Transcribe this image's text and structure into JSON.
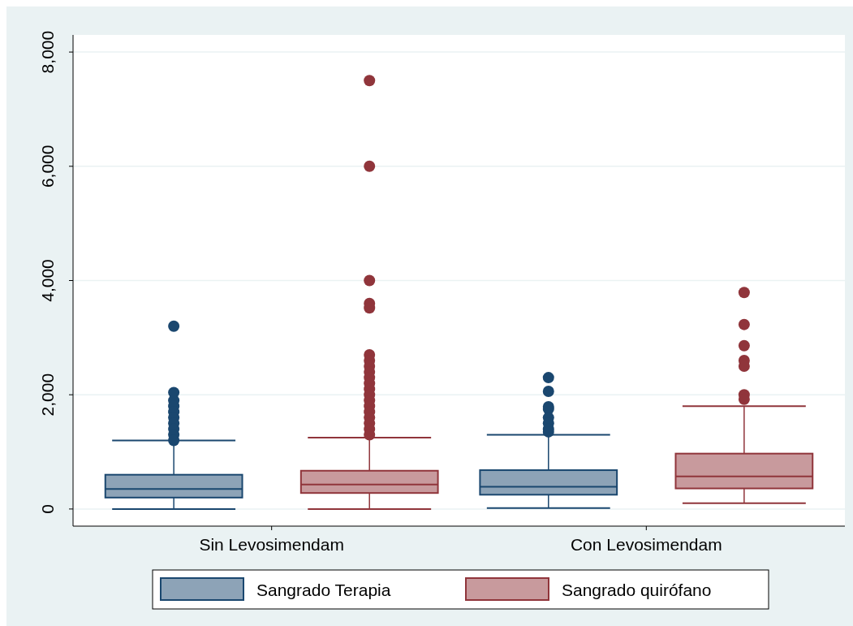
{
  "chart_data": {
    "type": "box",
    "categories": [
      "Sin Levosimendam",
      "Con Levosimendam"
    ],
    "ylim": [
      -300,
      8300
    ],
    "yticks": [
      {
        "value": 0,
        "label": "0"
      },
      {
        "value": 2000,
        "label": "2,000"
      },
      {
        "value": 4000,
        "label": "4,000"
      },
      {
        "value": 6000,
        "label": "6,000"
      },
      {
        "value": 8000,
        "label": "8,000"
      }
    ],
    "grid": "y",
    "legend": "bottom",
    "series": [
      {
        "name": "Sangrado Terapia",
        "color": "#1a476f",
        "boxes": [
          {
            "low": 0,
            "q1": 200,
            "median": 350,
            "q3": 600,
            "high": 1200,
            "outliers": [
              3200,
              2040,
              1900,
              1800,
              1700,
              1600,
              1500,
              1400,
              1300,
              1200
            ]
          },
          {
            "low": 15,
            "q1": 250,
            "median": 390,
            "q3": 680,
            "high": 1300,
            "outliers": [
              2300,
              2060,
              1790,
              1750,
              1600,
              1500,
              1400,
              1350
            ]
          }
        ]
      },
      {
        "name": "Sangrado quirófano",
        "color": "#90353b",
        "boxes": [
          {
            "low": 0,
            "q1": 280,
            "median": 430,
            "q3": 670,
            "high": 1250,
            "outliers": [
              7500,
              6000,
              4000,
              3600,
              3520,
              2700,
              2600,
              2500,
              2400,
              2300,
              2200,
              2100,
              2000,
              1900,
              1800,
              1700,
              1600,
              1500,
              1400,
              1300
            ]
          },
          {
            "low": 100,
            "q1": 360,
            "median": 570,
            "q3": 970,
            "high": 1800,
            "outliers": [
              3790,
              3230,
              2860,
              2600,
              2500,
              2000,
              1920
            ]
          }
        ]
      }
    ]
  }
}
